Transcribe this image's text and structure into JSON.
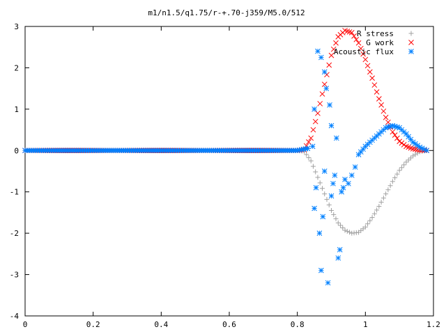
{
  "chart_data": {
    "type": "scatter",
    "title": "m1/n1.5/q1.75/r-+.70-j359/M5.0/512",
    "xlabel": "",
    "ylabel": "",
    "xlim": [
      0,
      1.2
    ],
    "ylim": [
      -4,
      3
    ],
    "x_ticks": [
      "0",
      "0.2",
      "0.4",
      "0.6",
      "0.8",
      "1",
      "1.2"
    ],
    "y_ticks": [
      "-4",
      "-3",
      "-2",
      "-1",
      "0",
      "1",
      "2",
      "3"
    ],
    "grid": false,
    "legend_position": "top-right",
    "series": [
      {
        "name": "R stress",
        "marker": "plus",
        "color": "#a0a0a0",
        "x": [
          0,
          0.1,
          0.2,
          0.3,
          0.4,
          0.5,
          0.6,
          0.7,
          0.8,
          0.82,
          0.84,
          0.86,
          0.88,
          0.9,
          0.92,
          0.94,
          0.96,
          0.98,
          1.0,
          1.02,
          1.04,
          1.06,
          1.08,
          1.1,
          1.12,
          1.14,
          1.16,
          1.18
        ],
        "y": [
          0,
          0,
          0,
          0,
          0,
          0,
          0,
          0,
          0,
          -0.02,
          -0.25,
          -0.65,
          -1.05,
          -1.45,
          -1.75,
          -1.93,
          -2.0,
          -1.98,
          -1.85,
          -1.62,
          -1.35,
          -1.05,
          -0.75,
          -0.48,
          -0.28,
          -0.13,
          -0.03,
          0.0
        ]
      },
      {
        "name": "G work",
        "marker": "cross",
        "color": "#ff0000",
        "x": [
          0,
          0.1,
          0.2,
          0.3,
          0.4,
          0.5,
          0.6,
          0.7,
          0.8,
          0.82,
          0.84,
          0.86,
          0.88,
          0.9,
          0.92,
          0.94,
          0.96,
          0.98,
          1.0,
          1.02,
          1.04,
          1.06,
          1.08,
          1.1,
          1.12,
          1.14,
          1.16,
          1.18
        ],
        "y": [
          0,
          0,
          0,
          0,
          0,
          0,
          0,
          0,
          0,
          0.02,
          0.3,
          0.9,
          1.6,
          2.3,
          2.75,
          2.9,
          2.85,
          2.6,
          2.2,
          1.75,
          1.25,
          0.8,
          0.45,
          0.22,
          0.1,
          0.04,
          0.01,
          0.0
        ]
      },
      {
        "name": "Acoustic flux",
        "marker": "star",
        "color": "#0080ff",
        "x": [
          0,
          0.1,
          0.2,
          0.3,
          0.4,
          0.5,
          0.6,
          0.7,
          0.8,
          0.83,
          0.845,
          0.85,
          0.85,
          0.855,
          0.86,
          0.865,
          0.87,
          0.87,
          0.875,
          0.88,
          0.88,
          0.885,
          0.89,
          0.895,
          0.9,
          0.9,
          0.905,
          0.91,
          0.915,
          0.92,
          0.925,
          0.93,
          0.935,
          0.94,
          0.95,
          0.96,
          0.97,
          0.98,
          1.0,
          1.02,
          1.04,
          1.06,
          1.08,
          1.1,
          1.12,
          1.14,
          1.16,
          1.18
        ],
        "y": [
          0,
          0,
          0,
          0,
          0,
          0,
          0,
          0,
          0,
          0.05,
          0.1,
          1.0,
          -1.4,
          -0.9,
          2.4,
          -2.0,
          -2.9,
          2.25,
          -1.6,
          1.9,
          -0.5,
          1.5,
          -3.2,
          1.1,
          0.6,
          -1.1,
          -0.8,
          -0.6,
          0.3,
          -2.6,
          -2.4,
          -1.0,
          -0.9,
          -0.7,
          -0.8,
          -0.6,
          -0.4,
          -0.1,
          0.1,
          0.25,
          0.4,
          0.55,
          0.6,
          0.55,
          0.4,
          0.2,
          0.08,
          0.0
        ]
      }
    ]
  }
}
